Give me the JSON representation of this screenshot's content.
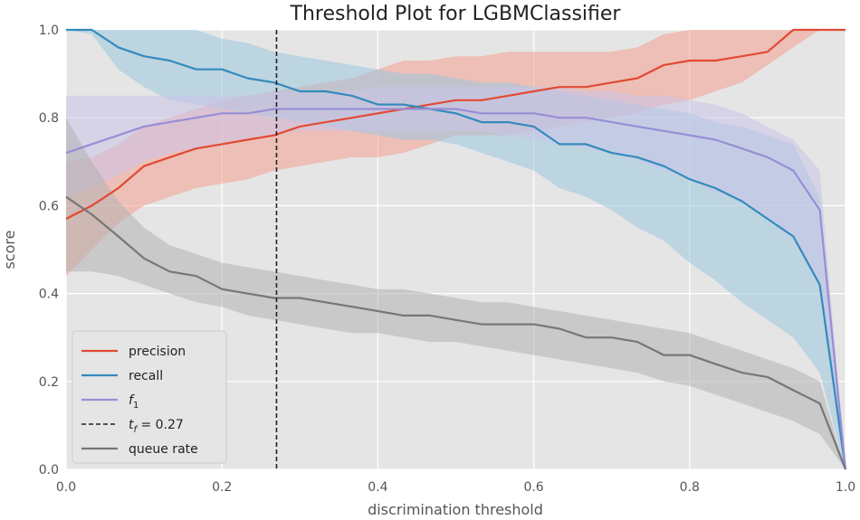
{
  "chart_data": {
    "type": "line",
    "title": "Threshold Plot for LGBMClassifier",
    "xlabel": "discrimination threshold",
    "ylabel": "score",
    "xlim": [
      0.0,
      1.0
    ],
    "ylim": [
      0.0,
      1.0
    ],
    "xticks": [
      "0.0",
      "0.2",
      "0.4",
      "0.6",
      "0.8",
      "1.0"
    ],
    "yticks": [
      "0.0",
      "0.2",
      "0.4",
      "0.6",
      "0.8",
      "1.0"
    ],
    "grid": true,
    "legend_position": "lower-left",
    "threshold": {
      "value": 0.27,
      "label_main": "t",
      "label_sub": "f",
      "label_rest": " = 0.27",
      "color": "#222222"
    },
    "series": [
      {
        "key": "precision",
        "name": "precision",
        "color": "#e24a33",
        "band_color": "#f4a08f",
        "x": [
          0.0,
          0.033,
          0.067,
          0.1,
          0.133,
          0.167,
          0.2,
          0.233,
          0.267,
          0.3,
          0.333,
          0.367,
          0.4,
          0.433,
          0.467,
          0.5,
          0.533,
          0.567,
          0.6,
          0.633,
          0.667,
          0.7,
          0.733,
          0.767,
          0.8,
          0.833,
          0.867,
          0.9,
          0.933,
          0.967,
          1.0
        ],
        "values": [
          0.57,
          0.6,
          0.64,
          0.69,
          0.71,
          0.73,
          0.74,
          0.75,
          0.76,
          0.78,
          0.79,
          0.8,
          0.81,
          0.82,
          0.83,
          0.84,
          0.84,
          0.85,
          0.86,
          0.87,
          0.87,
          0.88,
          0.89,
          0.92,
          0.93,
          0.93,
          0.94,
          0.95,
          1.0,
          1.0,
          1.0
        ],
        "lower": [
          0.44,
          0.5,
          0.56,
          0.6,
          0.62,
          0.64,
          0.65,
          0.66,
          0.68,
          0.69,
          0.7,
          0.71,
          0.71,
          0.72,
          0.74,
          0.76,
          0.76,
          0.76,
          0.77,
          0.78,
          0.79,
          0.8,
          0.81,
          0.83,
          0.84,
          0.86,
          0.88,
          0.92,
          0.96,
          1.0,
          1.0
        ],
        "upper": [
          0.7,
          0.71,
          0.74,
          0.78,
          0.8,
          0.82,
          0.84,
          0.85,
          0.86,
          0.87,
          0.88,
          0.89,
          0.91,
          0.93,
          0.93,
          0.94,
          0.94,
          0.95,
          0.95,
          0.95,
          0.95,
          0.95,
          0.96,
          0.99,
          1.0,
          1.0,
          1.0,
          1.0,
          1.0,
          1.0,
          1.0
        ]
      },
      {
        "key": "recall",
        "name": "recall",
        "color": "#348abd",
        "band_color": "#9cc6de",
        "x": [
          0.0,
          0.033,
          0.067,
          0.1,
          0.133,
          0.167,
          0.2,
          0.233,
          0.267,
          0.3,
          0.333,
          0.367,
          0.4,
          0.433,
          0.467,
          0.5,
          0.533,
          0.567,
          0.6,
          0.633,
          0.667,
          0.7,
          0.733,
          0.767,
          0.8,
          0.833,
          0.867,
          0.9,
          0.933,
          0.967,
          1.0
        ],
        "values": [
          1.0,
          1.0,
          0.96,
          0.94,
          0.93,
          0.91,
          0.91,
          0.89,
          0.88,
          0.86,
          0.86,
          0.85,
          0.83,
          0.83,
          0.82,
          0.81,
          0.79,
          0.79,
          0.78,
          0.74,
          0.74,
          0.72,
          0.71,
          0.69,
          0.66,
          0.64,
          0.61,
          0.57,
          0.53,
          0.42,
          0.0
        ],
        "lower": [
          1.0,
          0.99,
          0.91,
          0.87,
          0.84,
          0.83,
          0.82,
          0.81,
          0.8,
          0.79,
          0.78,
          0.77,
          0.76,
          0.75,
          0.75,
          0.74,
          0.72,
          0.7,
          0.68,
          0.64,
          0.62,
          0.59,
          0.55,
          0.52,
          0.47,
          0.43,
          0.38,
          0.34,
          0.3,
          0.22,
          0.0
        ],
        "upper": [
          1.0,
          1.0,
          1.0,
          1.0,
          1.0,
          1.0,
          0.98,
          0.97,
          0.95,
          0.94,
          0.93,
          0.92,
          0.91,
          0.9,
          0.9,
          0.89,
          0.88,
          0.88,
          0.87,
          0.86,
          0.85,
          0.84,
          0.83,
          0.82,
          0.81,
          0.79,
          0.78,
          0.76,
          0.74,
          0.62,
          0.0
        ]
      },
      {
        "key": "f1",
        "name": "f",
        "name_sub": "1",
        "color": "#988ed5",
        "band_color": "#cbc5ea",
        "x": [
          0.0,
          0.033,
          0.067,
          0.1,
          0.133,
          0.167,
          0.2,
          0.233,
          0.267,
          0.3,
          0.333,
          0.367,
          0.4,
          0.433,
          0.467,
          0.5,
          0.533,
          0.567,
          0.6,
          0.633,
          0.667,
          0.7,
          0.733,
          0.767,
          0.8,
          0.833,
          0.867,
          0.9,
          0.933,
          0.967,
          1.0
        ],
        "values": [
          0.72,
          0.74,
          0.76,
          0.78,
          0.79,
          0.8,
          0.81,
          0.81,
          0.82,
          0.82,
          0.82,
          0.82,
          0.82,
          0.82,
          0.82,
          0.82,
          0.81,
          0.81,
          0.81,
          0.8,
          0.8,
          0.79,
          0.78,
          0.77,
          0.76,
          0.75,
          0.73,
          0.71,
          0.68,
          0.59,
          0.0
        ],
        "lower": [
          0.62,
          0.64,
          0.67,
          0.7,
          0.72,
          0.73,
          0.74,
          0.75,
          0.76,
          0.77,
          0.77,
          0.77,
          0.77,
          0.77,
          0.77,
          0.77,
          0.77,
          0.76,
          0.75,
          0.74,
          0.73,
          0.72,
          0.7,
          0.68,
          0.66,
          0.63,
          0.61,
          0.57,
          0.52,
          0.43,
          0.0
        ],
        "upper": [
          0.85,
          0.85,
          0.85,
          0.85,
          0.85,
          0.85,
          0.85,
          0.85,
          0.86,
          0.86,
          0.86,
          0.86,
          0.87,
          0.87,
          0.87,
          0.87,
          0.87,
          0.87,
          0.87,
          0.87,
          0.86,
          0.86,
          0.85,
          0.85,
          0.84,
          0.83,
          0.81,
          0.78,
          0.75,
          0.68,
          0.0
        ]
      },
      {
        "key": "queue_rate",
        "name": "queue rate",
        "color": "#777777",
        "band_color": "#b3b3b3",
        "x": [
          0.0,
          0.033,
          0.067,
          0.1,
          0.133,
          0.167,
          0.2,
          0.233,
          0.267,
          0.3,
          0.333,
          0.367,
          0.4,
          0.433,
          0.467,
          0.5,
          0.533,
          0.567,
          0.6,
          0.633,
          0.667,
          0.7,
          0.733,
          0.767,
          0.8,
          0.833,
          0.867,
          0.9,
          0.933,
          0.967,
          1.0
        ],
        "values": [
          0.62,
          0.58,
          0.53,
          0.48,
          0.45,
          0.44,
          0.41,
          0.4,
          0.39,
          0.39,
          0.38,
          0.37,
          0.36,
          0.35,
          0.35,
          0.34,
          0.33,
          0.33,
          0.33,
          0.32,
          0.3,
          0.3,
          0.29,
          0.26,
          0.26,
          0.24,
          0.22,
          0.21,
          0.18,
          0.15,
          0.0
        ],
        "lower": [
          0.45,
          0.45,
          0.44,
          0.42,
          0.4,
          0.38,
          0.37,
          0.35,
          0.34,
          0.33,
          0.32,
          0.31,
          0.31,
          0.3,
          0.29,
          0.29,
          0.28,
          0.27,
          0.26,
          0.25,
          0.24,
          0.23,
          0.22,
          0.2,
          0.19,
          0.17,
          0.15,
          0.13,
          0.11,
          0.08,
          0.0
        ],
        "upper": [
          0.8,
          0.7,
          0.61,
          0.55,
          0.51,
          0.49,
          0.47,
          0.46,
          0.45,
          0.44,
          0.43,
          0.42,
          0.41,
          0.41,
          0.4,
          0.39,
          0.38,
          0.38,
          0.37,
          0.36,
          0.35,
          0.34,
          0.33,
          0.32,
          0.31,
          0.29,
          0.27,
          0.25,
          0.23,
          0.2,
          0.0
        ]
      }
    ],
    "legend_order": [
      "precision",
      "recall",
      "f1",
      "threshold",
      "queue_rate"
    ]
  }
}
